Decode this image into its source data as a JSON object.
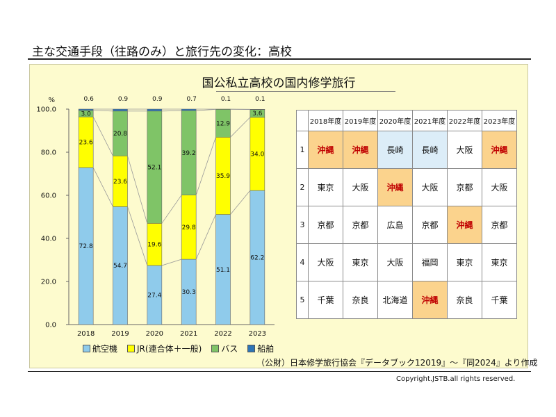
{
  "page_title": "主な交通手段（往路のみ）と旅行先の変化：高校",
  "chart_title": "国公私立高校の国内修学旅行",
  "chart_data": {
    "type": "bar",
    "stacked": true,
    "ylabel": "%",
    "ylim": [
      0,
      100
    ],
    "yticks": [
      "0.0",
      "20.0",
      "40.0",
      "60.0",
      "80.0",
      "100.0"
    ],
    "categories": [
      "2018",
      "2019",
      "2020",
      "2021",
      "2022",
      "2023"
    ],
    "series": [
      {
        "name": "航空機",
        "color": "#8fcbeb",
        "values": [
          72.8,
          54.7,
          27.4,
          30.3,
          51.1,
          62.2
        ],
        "labels": [
          "72.8",
          "54.7",
          "27.4",
          "30.3",
          "51.1",
          "62.2"
        ]
      },
      {
        "name": "JR(連合体＋一般)",
        "color": "#ffff00",
        "values": [
          23.6,
          23.6,
          19.6,
          29.8,
          35.9,
          34.0
        ],
        "labels": [
          "23.6",
          "23.6",
          "19.6",
          "29.8",
          "35.9",
          "34.0"
        ]
      },
      {
        "name": "バス",
        "color": "#7fc467",
        "values": [
          3.0,
          20.8,
          52.1,
          39.2,
          12.9,
          3.6
        ],
        "labels": [
          "3.0",
          "20.8",
          "52.1",
          "39.2",
          "12.9",
          "3.6"
        ]
      },
      {
        "name": "船舶",
        "color": "#2e75b6",
        "values": [
          0.6,
          0.9,
          0.9,
          0.7,
          0.1,
          0.1
        ],
        "labels": [
          "0.6",
          "0.9",
          "0.9",
          "0.7",
          "0.1",
          "0.1"
        ]
      }
    ],
    "grid": false,
    "legend": "bottom"
  },
  "source": "（公財）日本修学旅行協会『データブック12019』～『同2024』より作成",
  "ranking": {
    "years": [
      "2018年度",
      "2019年度",
      "2020年度",
      "2021年度",
      "2022年度",
      "2023年度"
    ],
    "ranks": [
      "1",
      "2",
      "3",
      "4",
      "5"
    ],
    "highlight_colors": {
      "okinawa": "#fbd38d",
      "nagasaki": "#dcedf8",
      "okinawa_text": "#c00000"
    },
    "rows": [
      [
        "沖縄",
        "沖縄",
        "長崎",
        "長崎",
        "大阪",
        "沖縄"
      ],
      [
        "東京",
        "大阪",
        "沖縄",
        "大阪",
        "京都",
        "大阪"
      ],
      [
        "京都",
        "京都",
        "広島",
        "京都",
        "沖縄",
        "京都"
      ],
      [
        "大阪",
        "東京",
        "大阪",
        "福岡",
        "東京",
        "東京"
      ],
      [
        "千葉",
        "奈良",
        "北海道",
        "沖縄",
        "奈良",
        "千葉"
      ]
    ]
  },
  "copyright": "Copyright.JSTB.all rights reserved."
}
